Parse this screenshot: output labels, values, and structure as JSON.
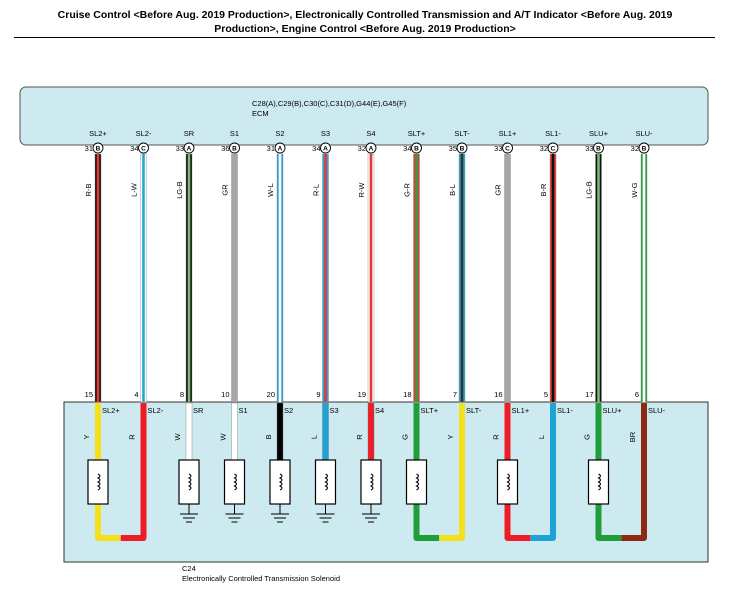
{
  "title": "Cruise Control <Before Aug. 2019 Production>, Electronically Controlled Transmission and A/T Indicator <Before Aug. 2019 Production>, Engine Control <Before Aug. 2019 Production>",
  "ecm": {
    "connectors": "C28(A),C29(B),C30(C),C31(D),G44(E),G45(F)",
    "name": "ECM"
  },
  "solenoid": {
    "connector": "C24",
    "name": "Electronically Controlled Transmission Solenoid"
  },
  "wires": [
    {
      "ecm_term": "SL2+",
      "ecm_pin": "31",
      "plug": "B",
      "color_code": "R-B",
      "colors": [
        "#e53935",
        "#111111"
      ],
      "sol_pin": "15",
      "sol_term": "SL2+",
      "sol_color": "Y"
    },
    {
      "ecm_term": "SL2-",
      "ecm_pin": "34",
      "plug": "C",
      "color_code": "L-W",
      "colors": [
        "#29a3d4",
        "#ffffff"
      ],
      "sol_pin": "4",
      "sol_term": "SL2-",
      "sol_color": "R"
    },
    {
      "ecm_term": "SR",
      "ecm_pin": "33",
      "plug": "A",
      "color_code": "LG-B",
      "colors": [
        "#7cb87c",
        "#111111"
      ],
      "sol_pin": "8",
      "sol_term": "SR",
      "sol_color": "W"
    },
    {
      "ecm_term": "S1",
      "ecm_pin": "36",
      "plug": "B",
      "color_code": "GR",
      "colors": [
        "#a6a6a6"
      ],
      "sol_pin": "10",
      "sol_term": "S1",
      "sol_color": "W"
    },
    {
      "ecm_term": "S2",
      "ecm_pin": "31",
      "plug": "A",
      "color_code": "W-L",
      "colors": [
        "#ffffff",
        "#29a3d4"
      ],
      "sol_pin": "20",
      "sol_term": "S2",
      "sol_color": "B"
    },
    {
      "ecm_term": "S3",
      "ecm_pin": "34",
      "plug": "A",
      "color_code": "R-L",
      "colors": [
        "#e53935",
        "#29a3d4"
      ],
      "sol_pin": "9",
      "sol_term": "S3",
      "sol_color": "L"
    },
    {
      "ecm_term": "S4",
      "ecm_pin": "32",
      "plug": "A",
      "color_code": "R-W",
      "colors": [
        "#e53935",
        "#ffffff"
      ],
      "sol_pin": "19",
      "sol_term": "S4",
      "sol_color": "R"
    },
    {
      "ecm_term": "SLT+",
      "ecm_pin": "34",
      "plug": "B",
      "color_code": "G-R",
      "colors": [
        "#2e9e3e",
        "#e53935"
      ],
      "sol_pin": "18",
      "sol_term": "SLT+",
      "sol_color": "G"
    },
    {
      "ecm_term": "SLT-",
      "ecm_pin": "35",
      "plug": "B",
      "color_code": "B-L",
      "colors": [
        "#333333",
        "#29a3d4"
      ],
      "sol_pin": "7",
      "sol_term": "SLT-",
      "sol_color": "Y"
    },
    {
      "ecm_term": "SL1+",
      "ecm_pin": "33",
      "plug": "C",
      "color_code": "GR",
      "colors": [
        "#a6a6a6"
      ],
      "sol_pin": "16",
      "sol_term": "SL1+",
      "sol_color": "R"
    },
    {
      "ecm_term": "SL1-",
      "ecm_pin": "32",
      "plug": "C",
      "color_code": "B-R",
      "colors": [
        "#111111",
        "#e53935"
      ],
      "sol_pin": "5",
      "sol_term": "SL1-",
      "sol_color": "L"
    },
    {
      "ecm_term": "SLU+",
      "ecm_pin": "33",
      "plug": "B",
      "color_code": "LG-B",
      "colors": [
        "#7cb87c",
        "#111111"
      ],
      "sol_pin": "17",
      "sol_term": "SLU+",
      "sol_color": "G"
    },
    {
      "ecm_term": "SLU-",
      "ecm_pin": "32",
      "plug": "B",
      "color_code": "W-G",
      "colors": [
        "#ffffff",
        "#2e9e3e"
      ],
      "sol_pin": "6",
      "sol_term": "SLU-",
      "sol_color": "BR"
    }
  ],
  "sol_color_hex": {
    "Y": "#f5e11b",
    "R": "#ee1c24",
    "W": "#ffffff",
    "B": "#000000",
    "L": "#1fa3d4",
    "G": "#1f9e3a",
    "BR": "#8b2a12"
  },
  "box_fill": "#cdeaf0"
}
